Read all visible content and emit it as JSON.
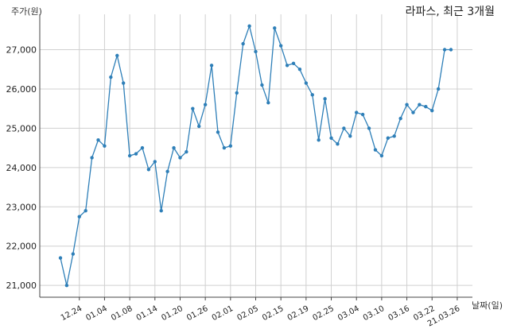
{
  "chart_data": {
    "type": "line",
    "title": "라파스, 최근 3개월",
    "ylabel": "주가(원)",
    "xlabel": "날짜(일)",
    "ylim": [
      20700,
      27900
    ],
    "yticks": [
      21000,
      22000,
      23000,
      24000,
      25000,
      26000,
      27000
    ],
    "ytick_labels": [
      "21,000",
      "22,000",
      "23,000",
      "24,000",
      "25,000",
      "26,000",
      "27,000"
    ],
    "xtick_labels": [
      "12.24",
      "01.04",
      "01.08",
      "01.14",
      "01.20",
      "01.26",
      "02.01",
      "02.05",
      "02.15",
      "02.19",
      "02.25",
      "03.04",
      "03.10",
      "03.16",
      "03.22",
      "21.03.26"
    ],
    "xtick_index": [
      3,
      7,
      11,
      15,
      19,
      23,
      27,
      31,
      35,
      39,
      43,
      47,
      51,
      55,
      59,
      63
    ],
    "grid": true,
    "line_color": "#2e7fb8",
    "series": [
      {
        "values": [
          21700,
          21000,
          21800,
          22750,
          22900,
          24250,
          24700,
          24550,
          26300,
          26850,
          26150,
          24300,
          24350,
          24500,
          23950,
          24150,
          22900,
          23900,
          24500,
          24250,
          24400,
          25500,
          25050,
          25600,
          26600,
          24900,
          24500,
          24550,
          25900,
          27150,
          27600,
          26950,
          26100,
          25650,
          27550,
          27100,
          26600,
          26650,
          26500,
          26150,
          25850,
          24700,
          25750,
          24750,
          24600,
          25000,
          24800,
          25400,
          25350,
          25000,
          24450,
          24300,
          24750,
          24800,
          25250,
          25600,
          25400,
          25600,
          25550,
          25450,
          26000,
          27000,
          27000
        ]
      }
    ]
  }
}
